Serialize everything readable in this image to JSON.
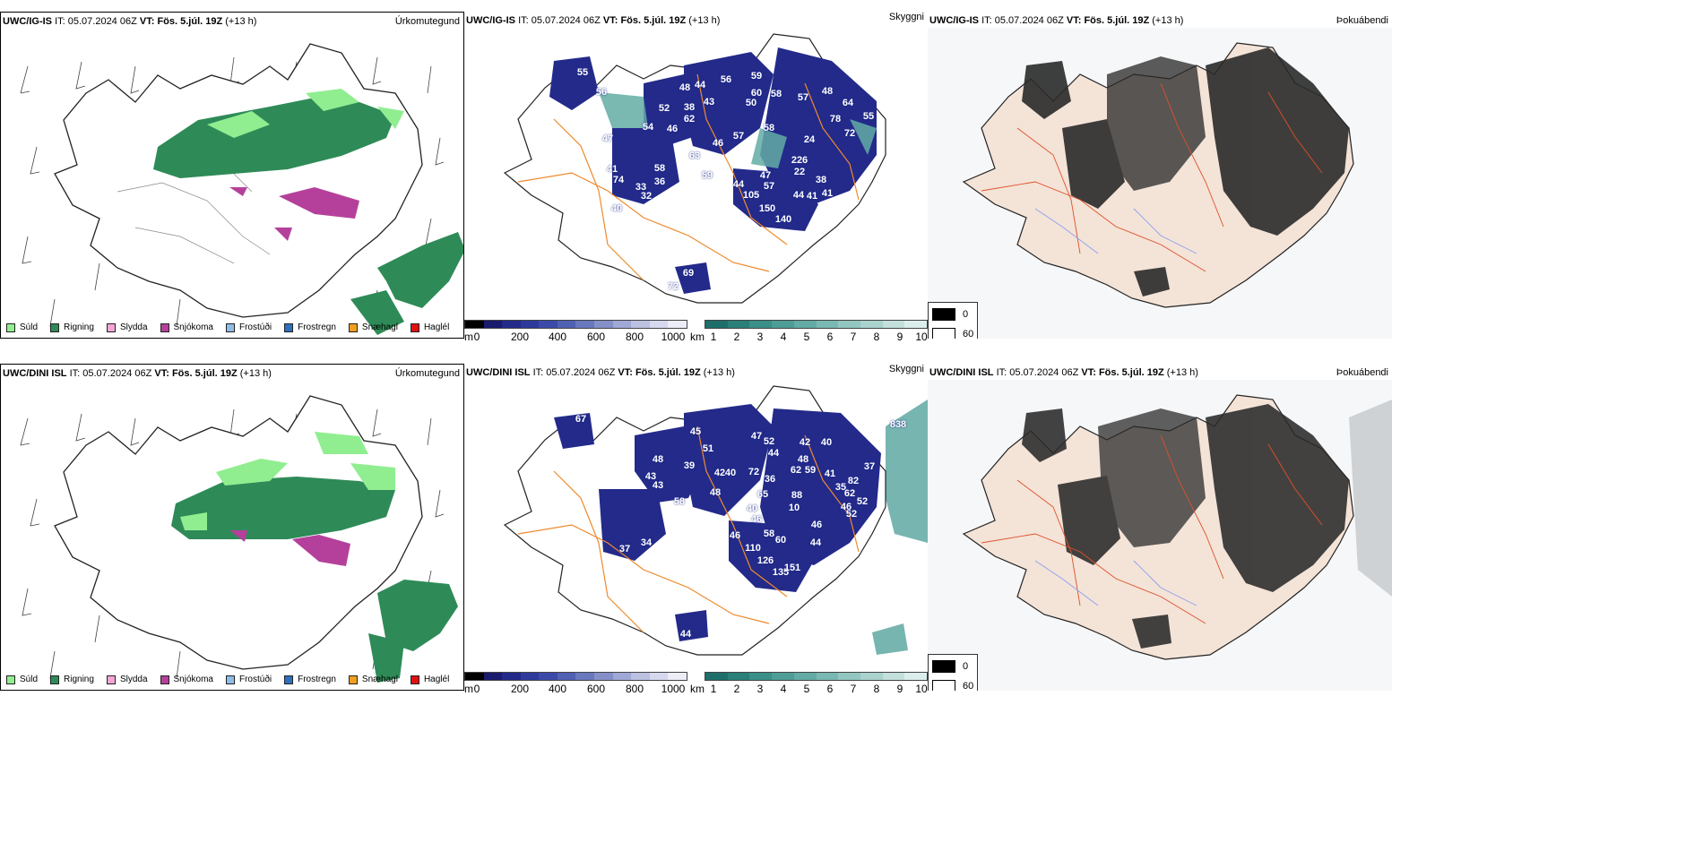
{
  "rows": [
    {
      "model": "UWC/IG-IS",
      "it_label": "IT:",
      "it_value": "05.07.2024 06Z",
      "vt_label": "VT:",
      "vt_value": "Fös. 5.júl. 19Z",
      "lead": "(+13 h)",
      "precip_title": "Úrkomutegund",
      "cloud_title": "Skyggni",
      "fog_title": "Þokuábendi",
      "cloud_labels": [
        "55",
        "56",
        "48",
        "44",
        "56",
        "59",
        "43",
        "60",
        "58",
        "57",
        "48",
        "52",
        "38",
        "50",
        "62",
        "54",
        "64",
        "78",
        "55",
        "47",
        "46",
        "46",
        "57",
        "58",
        "72",
        "24",
        "63",
        "226",
        "41",
        "74",
        "58",
        "59",
        "47",
        "22",
        "36",
        "33",
        "44",
        "105",
        "57",
        "38",
        "32",
        "40",
        "44",
        "41",
        "41",
        "150",
        "140",
        "69",
        "72"
      ]
    },
    {
      "model": "UWC/DINI ISL",
      "it_label": "IT:",
      "it_value": "05.07.2024 06Z",
      "vt_label": "VT:",
      "vt_value": "Fös. 5.júl. 19Z",
      "lead": "(+13 h)",
      "precip_title": "Úrkomutegund",
      "cloud_title": "Skyggni",
      "fog_title": "Þokuábendi",
      "cloud_labels": [
        "67",
        "45",
        "47",
        "52",
        "42",
        "40",
        "48",
        "44",
        "51",
        "39",
        "48",
        "42",
        "40",
        "72",
        "62",
        "59",
        "41",
        "37",
        "43",
        "43",
        "48",
        "36",
        "65",
        "35",
        "82",
        "62",
        "52",
        "46",
        "58",
        "40",
        "88",
        "10",
        "46",
        "52",
        "34",
        "37",
        "46",
        "58",
        "60",
        "46",
        "44",
        "110",
        "126",
        "135",
        "151",
        "44",
        "838"
      ]
    }
  ],
  "precip_legend": [
    {
      "label": "Súld",
      "color": "#90ee90"
    },
    {
      "label": "Rigning",
      "color": "#2e8b57"
    },
    {
      "label": "Slydda",
      "color": "#f4a6d7"
    },
    {
      "label": "Snjókoma",
      "color": "#b5409b"
    },
    {
      "label": "Frostúði",
      "color": "#8fbde8"
    },
    {
      "label": "Frostregn",
      "color": "#2f6fbf"
    },
    {
      "label": "Snæhagl",
      "color": "#f0a020"
    },
    {
      "label": "Haglél",
      "color": "#e01010"
    }
  ],
  "height_bar": {
    "unit": "m",
    "ticks": [
      "0",
      "200",
      "400",
      "600",
      "800",
      "1000"
    ],
    "colors": [
      "#000000",
      "#1a1a6e",
      "#232a8a",
      "#2d3a9c",
      "#3b4aa8",
      "#5060b2",
      "#6a78be",
      "#8590c9",
      "#a0a8d6",
      "#bcc1e2",
      "#d6d9ee",
      "#ecedf7"
    ]
  },
  "vis_bar": {
    "unit": "km",
    "ticks": [
      "1",
      "2",
      "3",
      "4",
      "5",
      "6",
      "7",
      "8",
      "9",
      "10"
    ],
    "colors": [
      "#1e6f6a",
      "#2b7f79",
      "#3a8f88",
      "#4e9d96",
      "#63aba4",
      "#7ab8b2",
      "#92c6c0",
      "#aad3ce",
      "#c3e0dc",
      "#dceeeb"
    ]
  },
  "fog_legend": [
    {
      "label": "0",
      "color": "#000000"
    },
    {
      "label": "60",
      "color": "#ffffff"
    }
  ]
}
